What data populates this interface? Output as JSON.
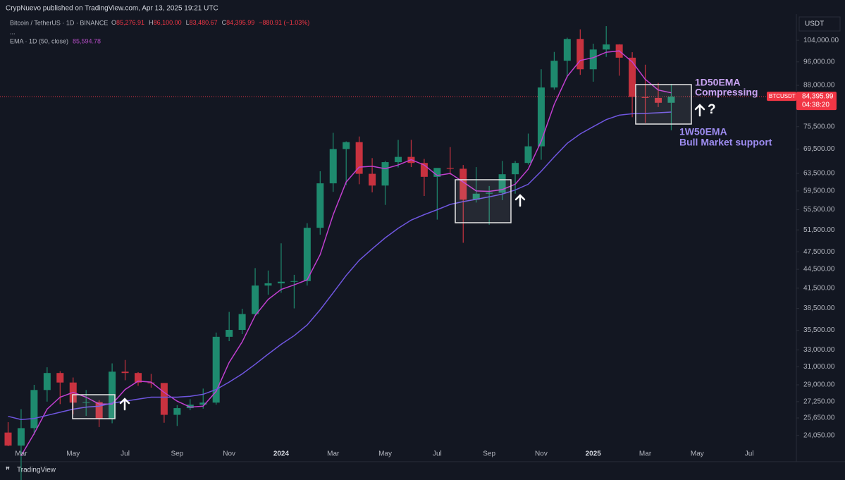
{
  "header": {
    "publisher": "CrypNuevo published on TradingView.com, Apr 13, 2025 19:21 UTC",
    "symbol": "Bitcoin / TetherUS · 1D · BINANCE",
    "ohlc": [
      {
        "key": "O",
        "value": "85,276.91"
      },
      {
        "key": "H",
        "value": "86,100.00"
      },
      {
        "key": "L",
        "value": "83,480.67"
      },
      {
        "key": "C",
        "value": "84,395.99"
      }
    ],
    "change": "−880.91 (−1.03%)",
    "indicator": "EMA · 1D (50, close)",
    "indicator_value": "85,594.78",
    "more": "...",
    "currency": "USDT",
    "brand": "TradingView"
  },
  "chart_data": {
    "type": "candlestick",
    "categories": [
      null,
      "Mar",
      null,
      null,
      null,
      "May",
      null,
      null,
      null,
      "Jul",
      null,
      null,
      null,
      "Sep",
      null,
      null,
      null,
      "Nov",
      null,
      null,
      null,
      "2024",
      null,
      null,
      null,
      "Mar",
      null,
      null,
      null,
      "May",
      null,
      null,
      null,
      "Jul",
      null,
      null,
      null,
      "Sep",
      null,
      null,
      null,
      "Nov",
      null,
      null,
      null,
      "2025",
      null,
      null,
      null,
      "Mar",
      null,
      null,
      null,
      "May",
      null,
      null,
      null,
      "Jul"
    ],
    "open": [
      24300,
      23150,
      24700,
      28450,
      30300,
      29250,
      27150,
      27200,
      25600,
      30450,
      30300,
      29250,
      29200,
      25950,
      26600,
      26950,
      27150,
      34650,
      35550,
      37700,
      41900,
      42250,
      42500,
      42600,
      51900,
      61200,
      69500,
      71300,
      63400,
      60700,
      66200,
      67500,
      66000,
      62700,
      64800,
      64600,
      57600,
      58900,
      59100,
      63300,
      66000,
      70200,
      87300,
      96400,
      104500,
      93400,
      100500,
      102400,
      97500,
      84300,
      84000,
      82500,
      null,
      null,
      null,
      null,
      null,
      null
    ],
    "high": [
      25250,
      26500,
      29000,
      30950,
      30500,
      29800,
      28450,
      27400,
      31400,
      31800,
      30400,
      30200,
      29200,
      26900,
      27500,
      28600,
      35200,
      38000,
      38450,
      44700,
      44300,
      49000,
      43600,
      52800,
      64000,
      73800,
      71500,
      72800,
      67200,
      66500,
      71900,
      71900,
      67000,
      64000,
      70000,
      65500,
      65000,
      60600,
      66500,
      66500,
      73600,
      93400,
      99600,
      105000,
      108300,
      102700,
      109600,
      102500,
      99500,
      95000,
      88800,
      88500,
      null,
      null,
      null,
      null,
      null,
      null
    ],
    "low": [
      23100,
      19600,
      24100,
      27250,
      27000,
      26000,
      25850,
      24800,
      25150,
      29500,
      28900,
      28700,
      25200,
      24900,
      26400,
      26550,
      26950,
      34100,
      35000,
      37600,
      40500,
      40800,
      38500,
      41900,
      50600,
      59300,
      60800,
      61000,
      59200,
      56500,
      64900,
      65000,
      58400,
      53500,
      63200,
      49100,
      57000,
      52500,
      57500,
      58900,
      65600,
      66800,
      86600,
      90500,
      91500,
      89200,
      97800,
      91200,
      78200,
      76600,
      81200,
      74500,
      null,
      null,
      null,
      null,
      null,
      null
    ],
    "close": [
      23150,
      24700,
      28450,
      30300,
      29250,
      27150,
      27200,
      25600,
      30450,
      30300,
      29250,
      29200,
      25950,
      26600,
      26950,
      27150,
      34650,
      35550,
      37700,
      41900,
      42250,
      42500,
      42600,
      51900,
      61200,
      69500,
      71300,
      63400,
      60700,
      66200,
      67500,
      66000,
      62700,
      64800,
      64600,
      57600,
      58900,
      59100,
      63300,
      66000,
      70200,
      87300,
      96400,
      104500,
      93400,
      100500,
      102400,
      97500,
      84300,
      84000,
      82500,
      84395.99,
      null,
      null,
      null,
      null,
      null,
      null
    ],
    "up_color": "#1e8a6e",
    "down_color": "#c8323f",
    "series": [
      {
        "name": "1D50EMA",
        "note": "Compressing",
        "color": "#c13fd0",
        "label_color": "#c9a3f2",
        "values": [
          null,
          22300,
          24200,
          26500,
          27700,
          28200,
          27700,
          27000,
          27000,
          28500,
          29400,
          29300,
          28200,
          27300,
          26700,
          26800,
          28300,
          31500,
          34000,
          37500,
          39800,
          41300,
          42000,
          42800,
          47000,
          54500,
          61500,
          65000,
          65200,
          64600,
          65500,
          66800,
          65500,
          63000,
          63500,
          61500,
          59500,
          59400,
          59800,
          61000,
          64500,
          71500,
          82000,
          91000,
          96500,
          97500,
          99500,
          100000,
          96000,
          90000,
          86500,
          85594.78,
          null,
          null,
          null,
          null,
          null,
          null
        ]
      },
      {
        "name": "1W50EMA",
        "note": "Bull Market support",
        "color": "#6f56e0",
        "label_color": "#9d8cf0",
        "values": [
          25800,
          25500,
          25600,
          25900,
          26200,
          26500,
          26700,
          26800,
          27100,
          27300,
          27500,
          27700,
          27700,
          27700,
          27800,
          28000,
          28500,
          29300,
          30200,
          31300,
          32500,
          33700,
          34800,
          36200,
          38300,
          40800,
          43500,
          46000,
          48000,
          50000,
          51800,
          53400,
          54500,
          55500,
          56600,
          57200,
          57700,
          58200,
          58800,
          59700,
          61000,
          64000,
          67500,
          71000,
          73500,
          75500,
          77500,
          78800,
          79200,
          79300,
          79500,
          79700,
          null,
          null,
          null,
          null,
          null,
          null
        ]
      }
    ],
    "log_scale": true,
    "grid": false,
    "ylim": [
      22100,
      114000
    ],
    "yticks": [
      {
        "value": 104000,
        "label": "104,000.00"
      },
      {
        "value": 96000,
        "label": "96,000.00"
      },
      {
        "value": 88000,
        "label": "88,000.00"
      },
      {
        "value": 75500,
        "label": "75,500.00"
      },
      {
        "value": 69500,
        "label": "69,500.00"
      },
      {
        "value": 63500,
        "label": "63,500.00"
      },
      {
        "value": 59500,
        "label": "59,500.00"
      },
      {
        "value": 55500,
        "label": "55,500.00"
      },
      {
        "value": 51500,
        "label": "51,500.00"
      },
      {
        "value": 47500,
        "label": "47,500.00"
      },
      {
        "value": 44500,
        "label": "44,500.00"
      },
      {
        "value": 41500,
        "label": "41,500.00"
      },
      {
        "value": 38500,
        "label": "38,500.00"
      },
      {
        "value": 35500,
        "label": "35,500.00"
      },
      {
        "value": 33000,
        "label": "33,000.00"
      },
      {
        "value": 31000,
        "label": "31,000.00"
      },
      {
        "value": 29000,
        "label": "29,000.00"
      },
      {
        "value": 27250,
        "label": "27,250.00"
      },
      {
        "value": 25650,
        "label": "25,650.00"
      },
      {
        "value": 24050,
        "label": "24,050.00"
      }
    ],
    "price_line": {
      "value": 84395.99,
      "label": "84,395.99",
      "symbol": "BTCUSDT",
      "countdown": "04:38:20",
      "color": "#f23645"
    },
    "question": "?"
  }
}
